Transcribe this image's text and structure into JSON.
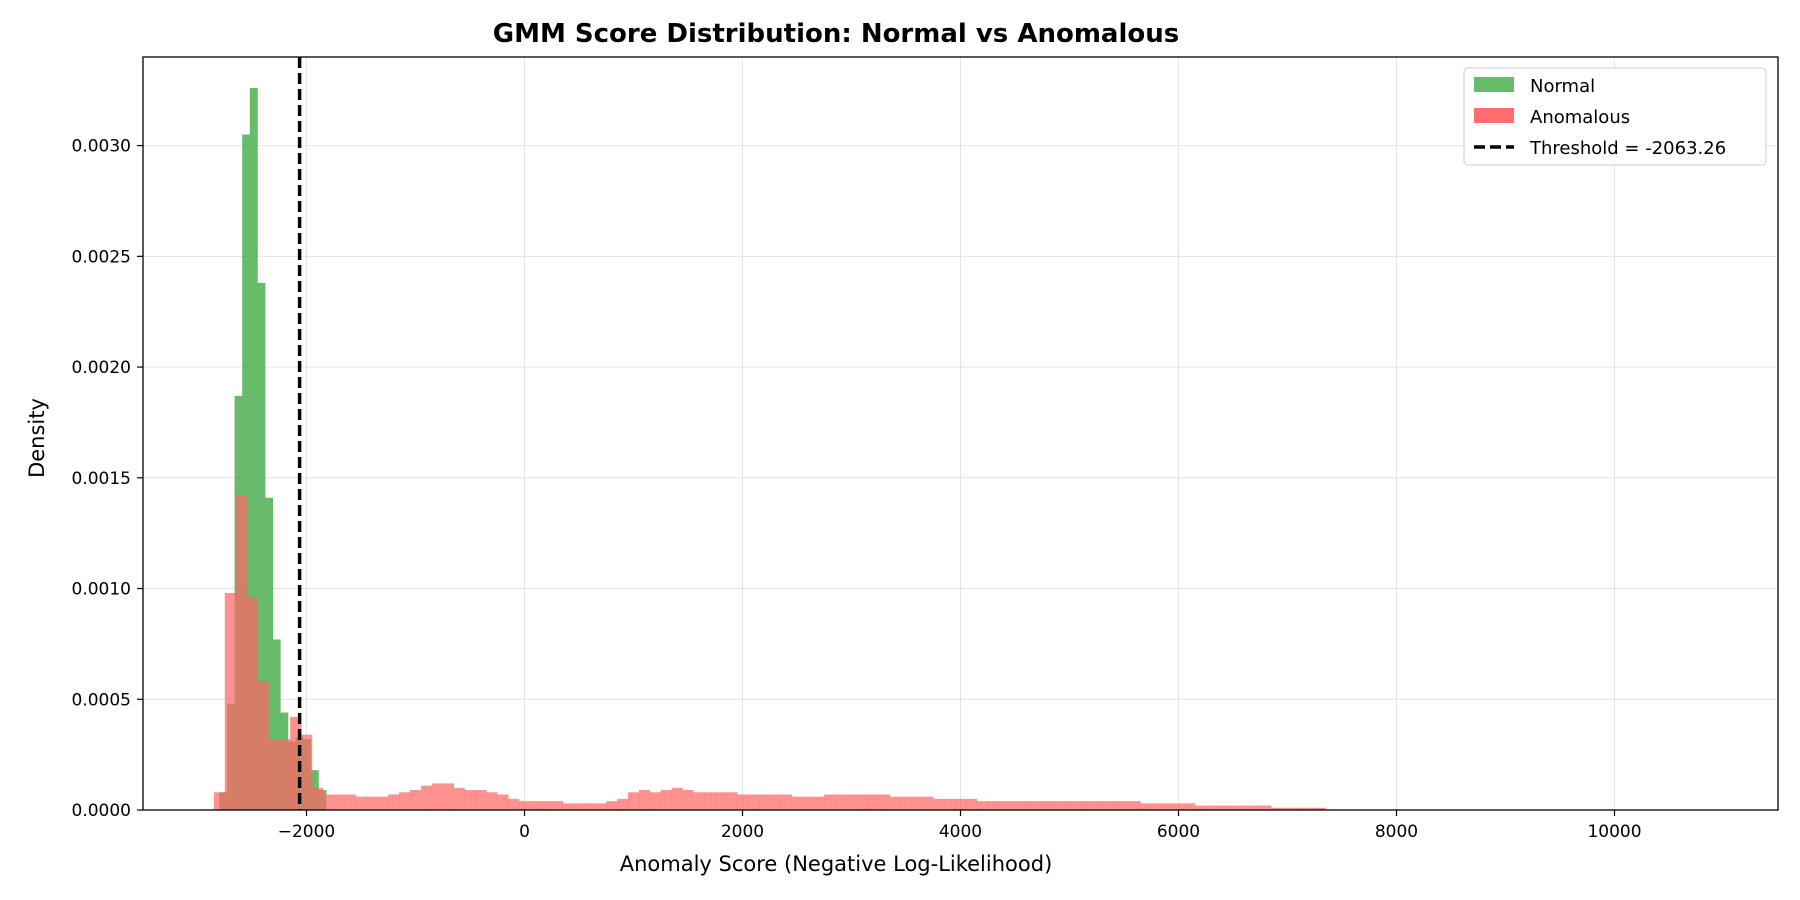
{
  "chart_data": {
    "type": "histogram",
    "title": "GMM Score Distribution: Normal vs Anomalous",
    "xlabel": "Anomaly Score (Negative Log-Likelihood)",
    "ylabel": "Density",
    "xlim": [
      -3500,
      11500
    ],
    "ylim": [
      0,
      0.0034
    ],
    "xticks": [
      -2000,
      0,
      2000,
      4000,
      6000,
      8000,
      10000
    ],
    "xtick_labels": [
      "−2000",
      "0",
      "2000",
      "4000",
      "6000",
      "8000",
      "10000"
    ],
    "yticks": [
      0,
      0.0005,
      0.001,
      0.0015,
      0.002,
      0.0025,
      0.003
    ],
    "ytick_labels": [
      "0.0000",
      "0.0005",
      "0.0010",
      "0.0015",
      "0.0020",
      "0.0025",
      "0.0030"
    ],
    "grid": true,
    "legend_position": "top-right",
    "threshold": {
      "value": -2063.26,
      "label": "Threshold = -2063.26",
      "color": "#000000",
      "style": "dashed"
    },
    "series": [
      {
        "name": "Normal",
        "color": "#4caf50",
        "bin_start": -2800,
        "bin_width": 70,
        "values": [
          8e-05,
          0.00048,
          0.00187,
          0.00305,
          0.00326,
          0.00238,
          0.00141,
          0.00077,
          0.00044,
          0.00031,
          0.00033,
          0.00032,
          0.00018,
          9e-05
        ]
      },
      {
        "name": "Anomalous",
        "color": "#ff6666",
        "bin_start": -2850,
        "bin_width": 100,
        "values": [
          8e-05,
          0.00098,
          0.00142,
          0.00096,
          0.00058,
          0.00032,
          0.00032,
          0.00042,
          0.00034,
          0.0001,
          7e-05,
          7e-05,
          7e-05,
          6e-05,
          6e-05,
          6e-05,
          7e-05,
          8e-05,
          9e-05,
          0.00011,
          0.00012,
          0.00012,
          0.0001,
          9e-05,
          9e-05,
          8e-05,
          7e-05,
          5e-05,
          4e-05,
          4e-05,
          4e-05,
          4e-05,
          3e-05,
          3e-05,
          3e-05,
          3e-05,
          4e-05,
          5e-05,
          8e-05,
          9e-05,
          8e-05,
          9e-05,
          0.0001,
          9e-05,
          8e-05,
          8e-05,
          8e-05,
          8e-05,
          7e-05,
          7e-05,
          7e-05,
          7e-05,
          7e-05,
          6e-05,
          6e-05,
          6e-05,
          7e-05,
          7e-05,
          7e-05,
          7e-05,
          7e-05,
          7e-05,
          6e-05,
          6e-05,
          6e-05,
          6e-05,
          5e-05,
          5e-05,
          5e-05,
          5e-05,
          4e-05,
          4e-05,
          4e-05,
          4e-05,
          4e-05,
          4e-05,
          4e-05,
          4e-05,
          4e-05,
          4e-05,
          4e-05,
          4e-05,
          4e-05,
          4e-05,
          4e-05,
          3e-05,
          3e-05,
          3e-05,
          3e-05,
          3e-05,
          2e-05,
          2e-05,
          2e-05,
          2e-05,
          2e-05,
          2e-05,
          2e-05,
          1e-05,
          1e-05,
          1e-05,
          1e-05,
          1e-05
        ]
      }
    ]
  }
}
